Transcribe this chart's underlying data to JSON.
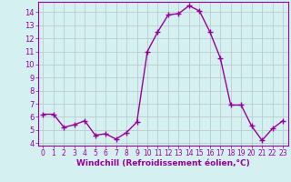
{
  "x": [
    0,
    1,
    2,
    3,
    4,
    5,
    6,
    7,
    8,
    9,
    10,
    11,
    12,
    13,
    14,
    15,
    16,
    17,
    18,
    19,
    20,
    21,
    22,
    23
  ],
  "y": [
    6.2,
    6.2,
    5.2,
    5.4,
    5.7,
    4.6,
    4.7,
    4.3,
    4.8,
    5.6,
    11.0,
    12.5,
    13.8,
    13.9,
    14.5,
    14.1,
    12.5,
    10.5,
    6.9,
    6.9,
    5.3,
    4.2,
    5.1,
    5.7
  ],
  "line_color": "#990099",
  "marker": "+",
  "markersize": 4,
  "linewidth": 1.0,
  "xlabel": "Windchill (Refroidissement éolien,°C)",
  "xlabel_fontsize": 6.5,
  "xlim": [
    -0.5,
    23.5
  ],
  "ylim": [
    3.8,
    14.8
  ],
  "yticks": [
    4,
    5,
    6,
    7,
    8,
    9,
    10,
    11,
    12,
    13,
    14
  ],
  "xticks": [
    0,
    1,
    2,
    3,
    4,
    5,
    6,
    7,
    8,
    9,
    10,
    11,
    12,
    13,
    14,
    15,
    16,
    17,
    18,
    19,
    20,
    21,
    22,
    23
  ],
  "grid_color": "#bbcccc",
  "bg_color": "#d4f0f0",
  "tick_fontsize": 6.0,
  "xtick_fontsize": 5.5
}
